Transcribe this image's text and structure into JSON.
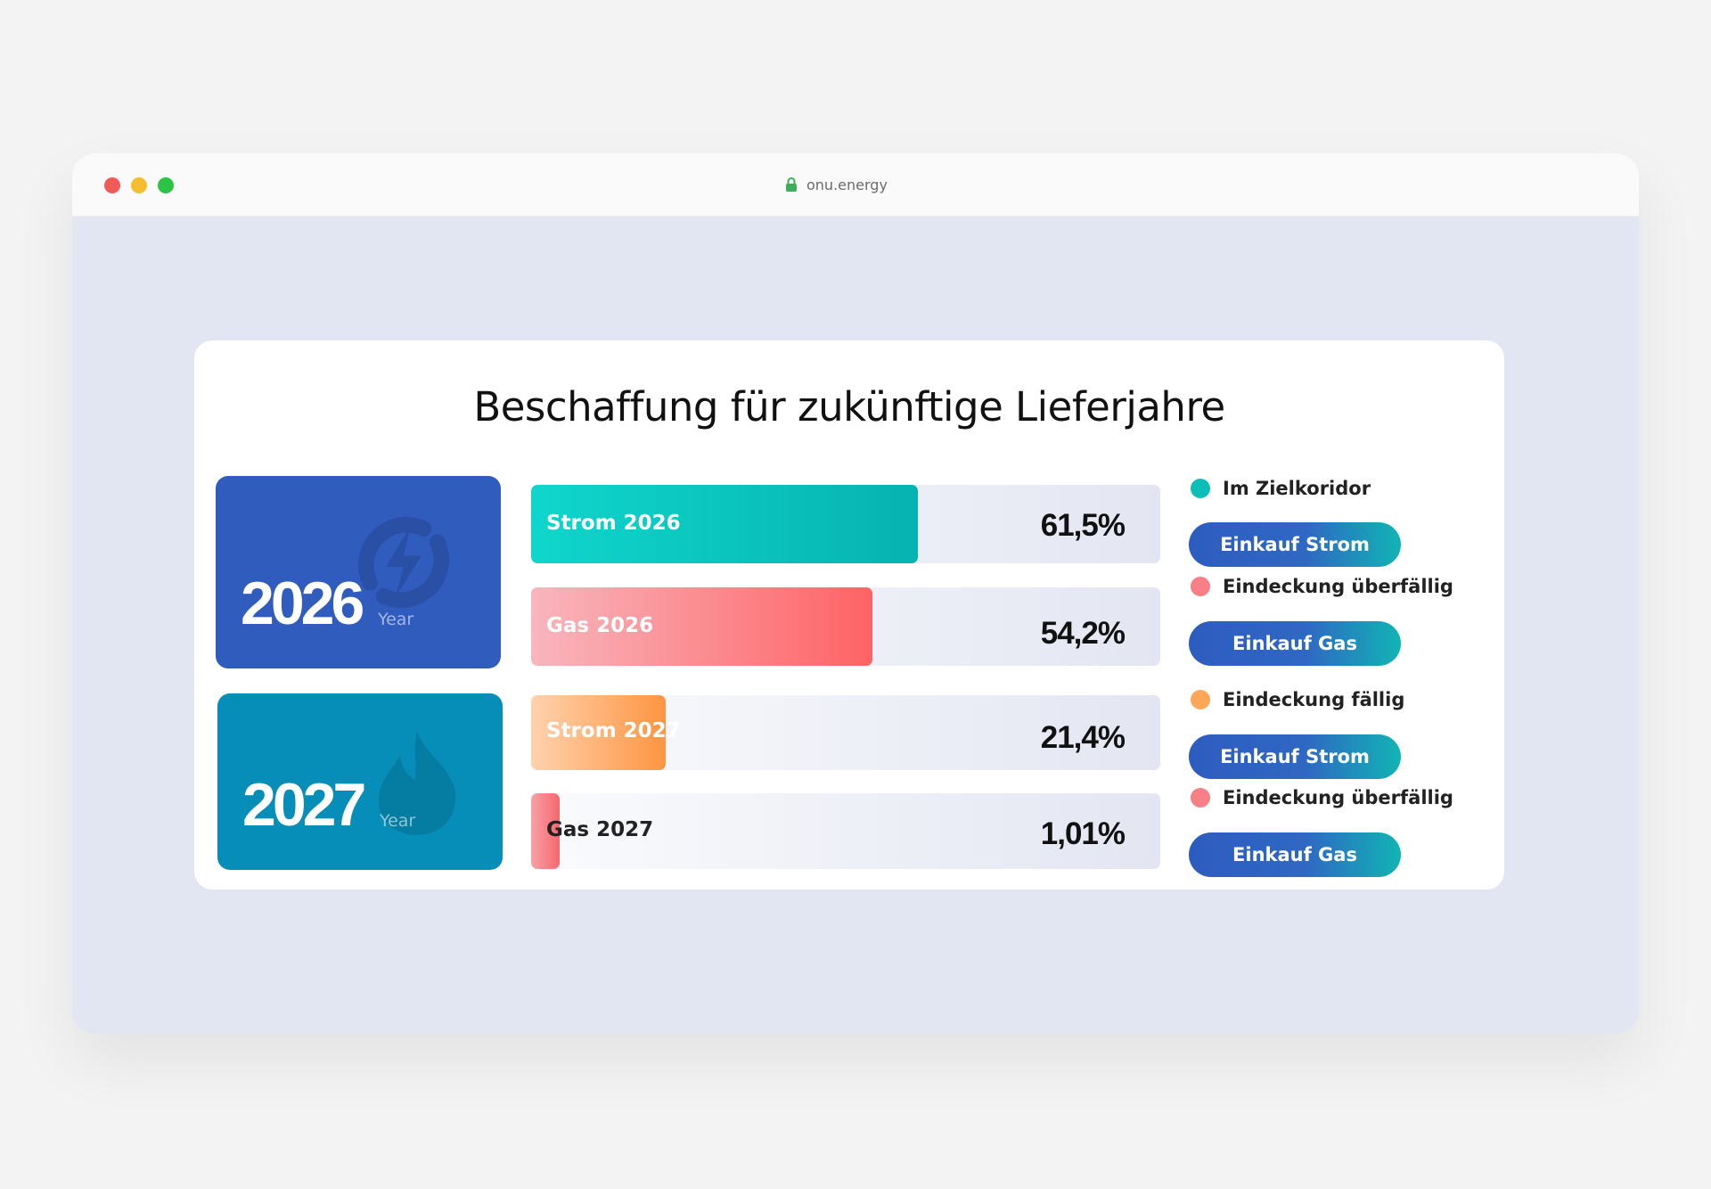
{
  "browser": {
    "url": "onu.energy",
    "window_controls": [
      "close",
      "minimize",
      "maximize"
    ]
  },
  "card": {
    "title": "Beschaffung für zukünftige Lieferjahre"
  },
  "years": [
    {
      "year": "2026",
      "label": "Year",
      "color": "#305cbd",
      "watermark_icon": "lightning-bolt-icon"
    },
    {
      "year": "2027",
      "label": "Year",
      "color": "#068eb9",
      "watermark_icon": "flame-icon"
    }
  ],
  "bars": [
    {
      "label": "Strom 2026",
      "value_text": "61,5%",
      "percent": 61.5,
      "gradient": [
        "#0fd6cc",
        "#06b3b0"
      ],
      "label_color": "#ffffff"
    },
    {
      "label": "Gas 2026",
      "value_text": "54,2%",
      "percent": 54.2,
      "gradient": [
        "#f8b6bd",
        "#fe6365"
      ],
      "label_color": "#ffffff"
    },
    {
      "label": "Strom 2027",
      "value_text": "21,4%",
      "percent": 21.4,
      "gradient": [
        "#ffd2ae",
        "#fd9541"
      ],
      "label_color": "#ffffff"
    },
    {
      "label": "Gas 2027",
      "value_text": "1,01%",
      "percent": 1.01,
      "gradient": [
        "#f8a0a7",
        "#f4686d"
      ],
      "label_color": "#222222"
    }
  ],
  "statuses": [
    {
      "text": "Im Zielkoridor",
      "dot_color": "#0cbeb8",
      "button": "Einkauf Strom"
    },
    {
      "text": "Eindeckung überfällig",
      "dot_color": "#f77f85",
      "button": "Einkauf Gas"
    },
    {
      "text": "Eindeckung fällig",
      "dot_color": "#fda758",
      "button": "Einkauf Strom"
    },
    {
      "text": "Eindeckung überfällig",
      "dot_color": "#f77f85",
      "button": "Einkauf Gas"
    }
  ]
}
